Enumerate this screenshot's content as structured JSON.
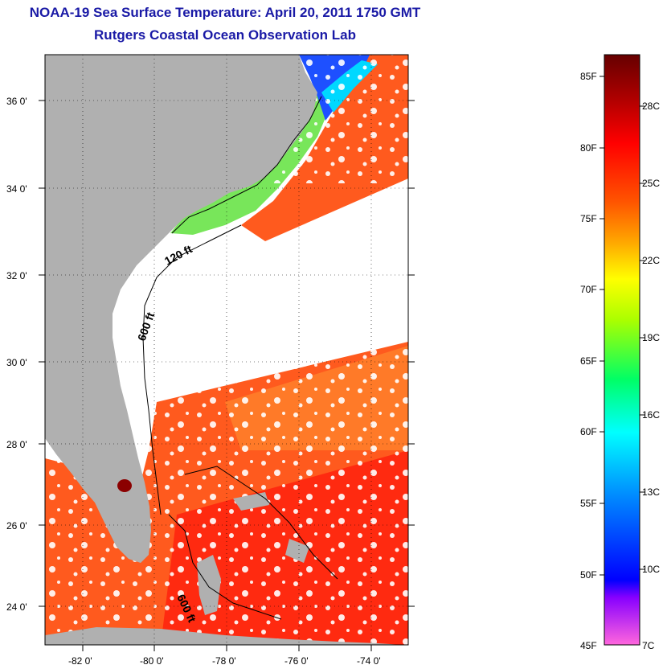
{
  "title_line1": "NOAA-19 Sea Surface Temperature:  April 20, 2011 1750 GMT",
  "title_line2": "Rutgers Coastal Ocean Observation Lab",
  "lat_labels": [
    "36 0'",
    "34 0'",
    "32 0'",
    "30 0'",
    "28 0'",
    "26 0'",
    "24 0'"
  ],
  "lon_labels": [
    "-82 0'",
    "-80 0'",
    "-78 0'",
    "-76 0'",
    "-74 0'"
  ],
  "contour_labels": [
    "120 ft",
    "600 ft",
    "600 ft"
  ],
  "colorbar": {
    "fahrenheit": [
      "85F",
      "80F",
      "75F",
      "70F",
      "65F",
      "60F",
      "55F",
      "50F",
      "45F"
    ],
    "celsius": [
      "28C",
      "25C",
      "22C",
      "19C",
      "16C",
      "13C",
      "10C",
      "7C"
    ],
    "colors": [
      "#ff66dd",
      "#8800ff",
      "#0000ff",
      "#0088ff",
      "#00ffff",
      "#00ff66",
      "#aaff00",
      "#ffff00",
      "#ffaa00",
      "#ff5500",
      "#ff0000",
      "#aa0000",
      "#660000"
    ]
  },
  "colors": {
    "land": "#b0b0b0",
    "warm_sst": "#ff5a1e",
    "cool_sst": "#78e65a",
    "cold_sst": "#1e50ff",
    "title": "#1a1aa6"
  }
}
